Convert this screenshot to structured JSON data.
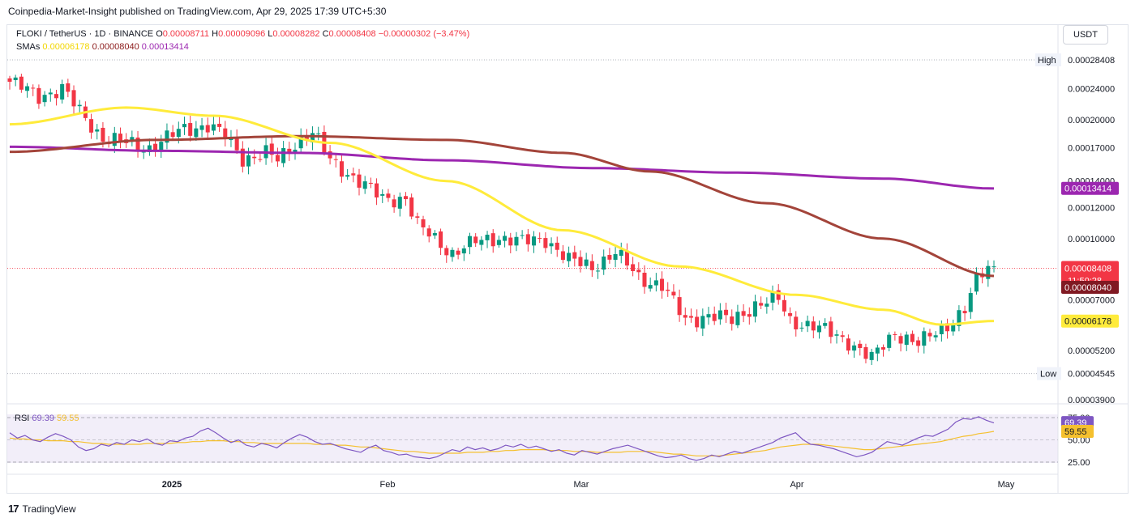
{
  "header": {
    "publisher_line": "Coinpedia-Market-Insight published on TradingView.com, Apr 29, 2025 17:39 UTC+5:30"
  },
  "legend": {
    "symbol": "FLOKI / TetherUS · 1D · BINANCE",
    "o_label": "O",
    "o_value": "0.00008711",
    "h_label": "H",
    "h_value": "0.00009096",
    "l_label": "L",
    "l_value": "0.00008282",
    "c_label": "C",
    "c_value": "0.00008408",
    "change": "−0.00000302 (−3.47%)",
    "smas_label": "SMAs",
    "sma1": "0.00006178",
    "sma2": "0.00008040",
    "sma3": "0.00013414"
  },
  "currency_button": "USDT",
  "rsi_legend": {
    "label": "RSI",
    "value1": "69.39",
    "value2": "59.55"
  },
  "branding": {
    "name": "TradingView"
  },
  "colors": {
    "up": "#089981",
    "down": "#f23645",
    "sma_fast": "#ffeb3b",
    "sma_mid": "#a3443a",
    "sma_slow": "#9c27b0",
    "rsi_line": "#7e57c2",
    "rsi_ma": "#f5c02e"
  },
  "chart_data": {
    "type": "candlestick",
    "price_axis_ticks": [
      "0.00028408",
      "0.00024000",
      "0.00020000",
      "0.00017000",
      "0.00014000",
      "0.00012000",
      "0.00010000",
      "0.00008408",
      "0.00007000",
      "0.00006178",
      "0.00005200",
      "0.00004545",
      "0.00003900"
    ],
    "price_axis_labels": [
      "0.00024000",
      "0.00020000",
      "0.00017000",
      "0.00014000",
      "0.00012000",
      "0.00010000",
      "0.00007000",
      "0.00005200",
      "0.00003900"
    ],
    "high_marker": {
      "label": "High",
      "value": "0.00028408"
    },
    "low_marker": {
      "label": "Low",
      "value": "0.00004545"
    },
    "last_price": {
      "value": "0.00008408",
      "countdown": "11:50:28"
    },
    "sma_tags": [
      {
        "value": "0.00013414",
        "series": "sma3"
      },
      {
        "value": "0.00008040",
        "series": "sma2"
      },
      {
        "value": "0.00006178",
        "series": "sma1"
      }
    ],
    "x_axis_labels": [
      "2025",
      "Feb",
      "Mar",
      "Apr",
      "May"
    ],
    "rsi": {
      "axis_labels": [
        "75.00",
        "50.00",
        "25.00"
      ],
      "current": "69.39",
      "ma_current": "59.55",
      "values": [
        58,
        52,
        55,
        50,
        48,
        53,
        57,
        54,
        50,
        42,
        38,
        40,
        45,
        43,
        47,
        45,
        50,
        48,
        51,
        46,
        44,
        49,
        48,
        52,
        54,
        60,
        63,
        58,
        52,
        47,
        50,
        44,
        42,
        46,
        44,
        41,
        47,
        52,
        56,
        53,
        48,
        45,
        46,
        43,
        40,
        38,
        36,
        41,
        44,
        38,
        36,
        33,
        34,
        31,
        30,
        29,
        31,
        35,
        39,
        37,
        42,
        39,
        41,
        38,
        40,
        44,
        42,
        45,
        41,
        43,
        40,
        37,
        39,
        35,
        33,
        38,
        36,
        34,
        37,
        40,
        42,
        44,
        41,
        38,
        35,
        32,
        30,
        31,
        33,
        29,
        27,
        29,
        33,
        31,
        34,
        37,
        35,
        38,
        41,
        44,
        47,
        52,
        55,
        58,
        50,
        45,
        44,
        42,
        40,
        37,
        34,
        31,
        33,
        36,
        42,
        48,
        46,
        44,
        48,
        52,
        55,
        54,
        58,
        62,
        70,
        74,
        73,
        76,
        72,
        69
      ],
      "ma_values": [
        52,
        51,
        51,
        50,
        50,
        49,
        49,
        49,
        48,
        48,
        47,
        46,
        46,
        45,
        45,
        45,
        45,
        45,
        46,
        46,
        46,
        46,
        47,
        47,
        48,
        48,
        49,
        49,
        49,
        48,
        48,
        47,
        47,
        46,
        46,
        46,
        46,
        46,
        46,
        46,
        45,
        45,
        45,
        44,
        44,
        43,
        42,
        42,
        41,
        40,
        39,
        38,
        37,
        37,
        36,
        35,
        35,
        35,
        35,
        35,
        36,
        36,
        36,
        37,
        37,
        38,
        38,
        39,
        39,
        39,
        39,
        38,
        38,
        38,
        37,
        37,
        37,
        36,
        36,
        36,
        36,
        37,
        37,
        37,
        37,
        36,
        35,
        34,
        34,
        33,
        32,
        32,
        32,
        32,
        33,
        34,
        35,
        36,
        37,
        38,
        40,
        42,
        43,
        44,
        45,
        45,
        45,
        44,
        43,
        42,
        41,
        40,
        39,
        39,
        40,
        41,
        42,
        43,
        44,
        45,
        46,
        47,
        48,
        50,
        52,
        54,
        55,
        57,
        58,
        59.55
      ]
    }
  }
}
